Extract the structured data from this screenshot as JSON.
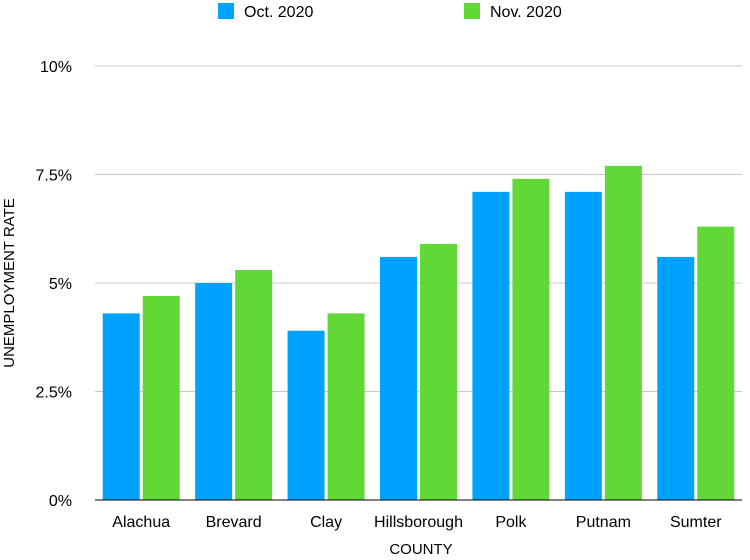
{
  "chart_data": {
    "type": "bar",
    "title": "",
    "xlabel": "COUNTY",
    "ylabel": "UNEMPLOYMENT RATE",
    "categories": [
      "Alachua",
      "Brevard",
      "Clay",
      "Hillsborough",
      "Polk",
      "Putnam",
      "Sumter"
    ],
    "series": [
      {
        "name": "Oct. 2020",
        "color": "#00a2ff",
        "values": [
          4.3,
          5.0,
          3.9,
          5.6,
          7.1,
          7.1,
          5.6
        ]
      },
      {
        "name": "Nov. 2020",
        "color": "#61d836",
        "values": [
          4.7,
          5.3,
          4.3,
          5.9,
          7.4,
          7.7,
          6.3
        ]
      }
    ],
    "ylim": [
      0,
      10
    ],
    "yticks": [
      {
        "value": 0,
        "label": "0%"
      },
      {
        "value": 2.5,
        "label": "2.5%"
      },
      {
        "value": 5,
        "label": "5%"
      },
      {
        "value": 7.5,
        "label": "7.5%"
      },
      {
        "value": 10,
        "label": "10%"
      }
    ],
    "grid": true,
    "legend_position": "top-center"
  }
}
